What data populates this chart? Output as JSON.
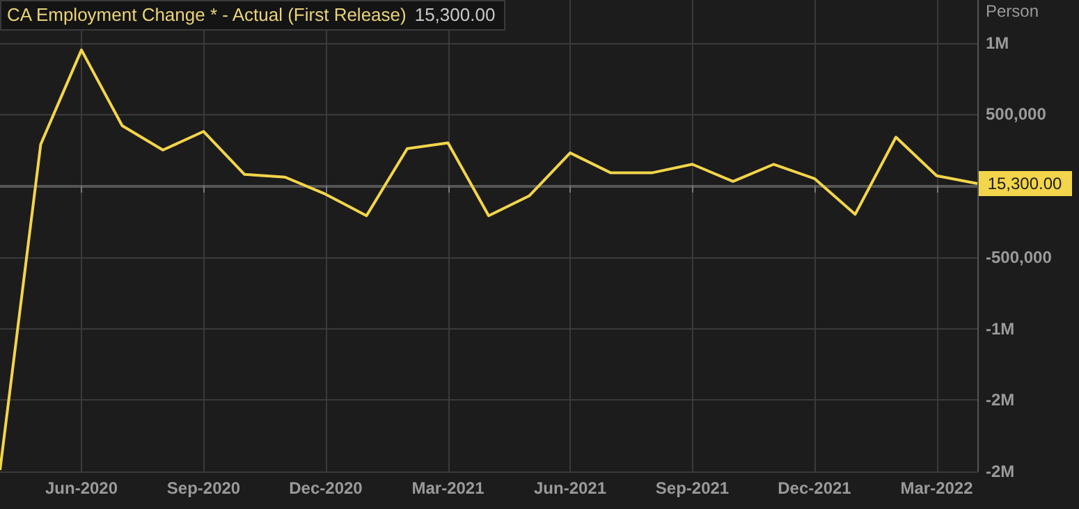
{
  "chart_data": {
    "type": "line",
    "title": "CA Employment Change * - Actual (First Release)",
    "ylabel": "Person",
    "categories": [
      null,
      null,
      "Jun-2020",
      null,
      null,
      "Sep-2020",
      null,
      null,
      "Dec-2020",
      null,
      null,
      "Mar-2021",
      null,
      null,
      "Jun-2021",
      null,
      null,
      "Sep-2021",
      null,
      null,
      "Dec-2021",
      null,
      null,
      "Mar-2022",
      null
    ],
    "series": [
      {
        "color": "#f2d54a",
        "values": [
          -1990000,
          290000,
          950000,
          420000,
          250000,
          380000,
          80000,
          60000,
          -60000,
          -210000,
          260000,
          300000,
          -210000,
          -70000,
          230000,
          90000,
          90000,
          150000,
          30000,
          150000,
          50000,
          -200000,
          340000,
          70000,
          15300
        ]
      }
    ],
    "ylim": [
      -2000000,
      1300000
    ],
    "yticks": [
      {
        "value": -2000000,
        "label": "-2M"
      },
      {
        "value": -1500000,
        "label": "-2M"
      },
      {
        "value": -1000000,
        "label": "-1M"
      },
      {
        "value": -500000,
        "label": "-500,000"
      },
      {
        "value": 0,
        "label": null
      },
      {
        "value": 500000,
        "label": "500,000"
      },
      {
        "value": 1000000,
        "label": "1M"
      }
    ],
    "annotations": [
      "15,300.00",
      "15,300.00"
    ],
    "grid": true,
    "marker": "none",
    "line_style": "solid"
  }
}
